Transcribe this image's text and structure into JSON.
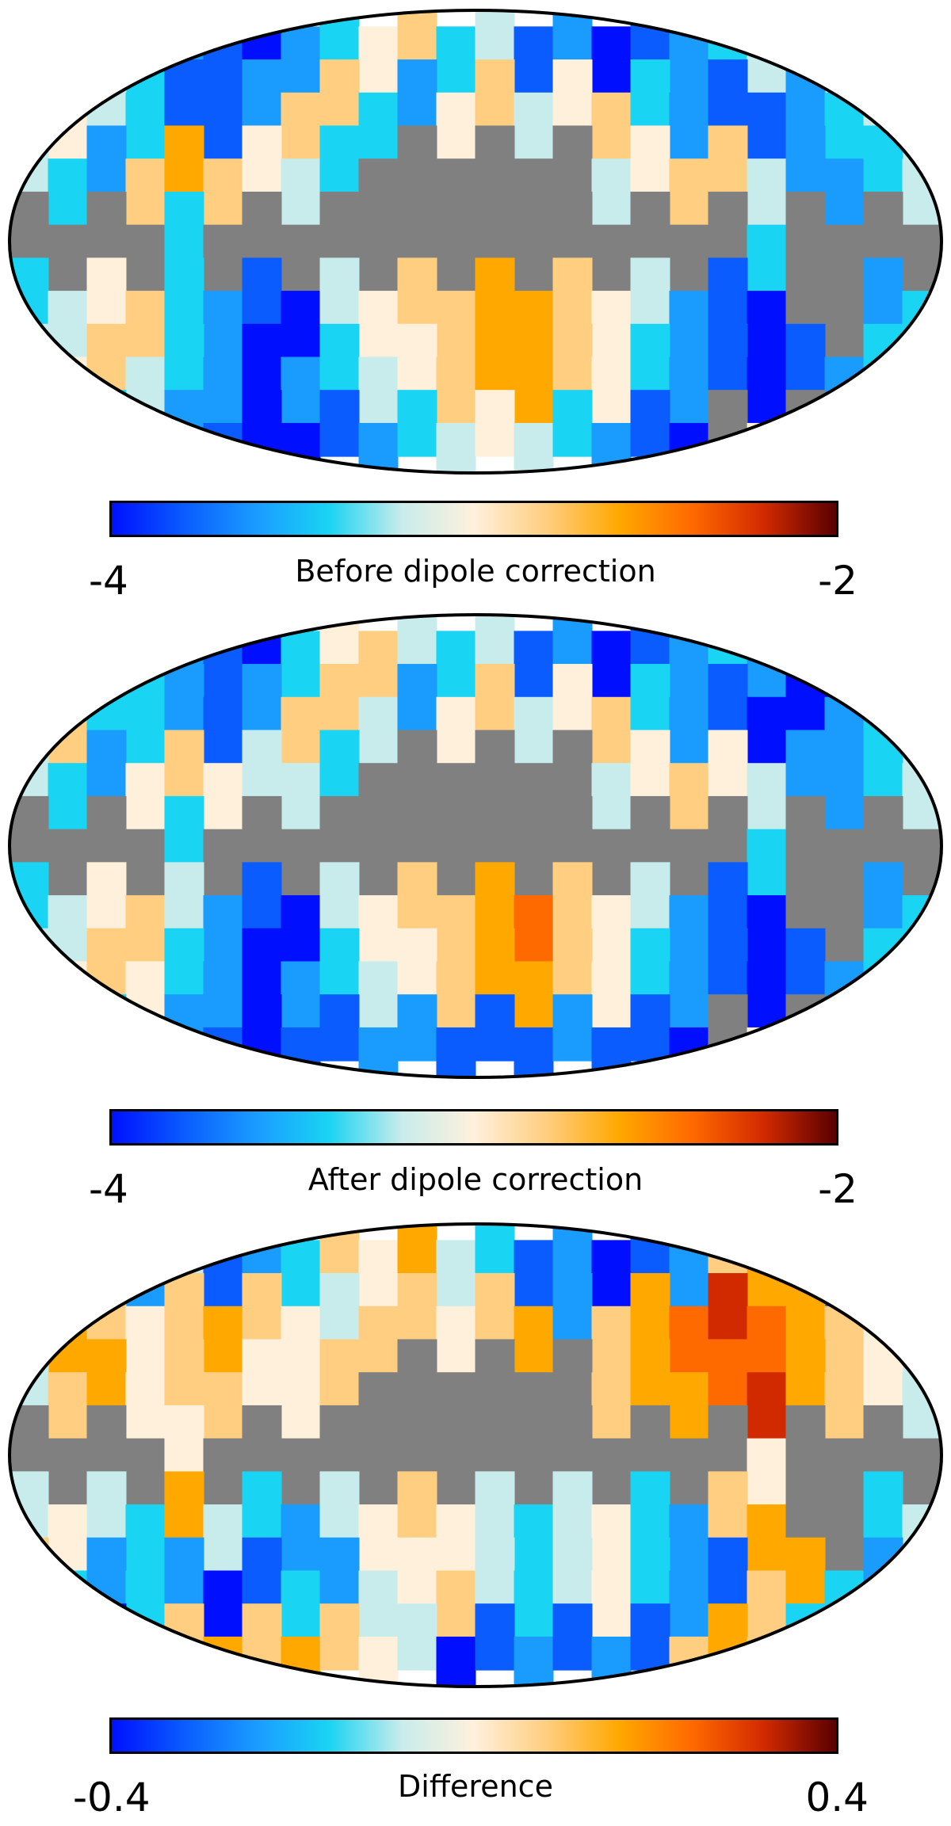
{
  "colormap": [
    "#0010ff",
    "#0a5cff",
    "#1a9cff",
    "#19d4f2",
    "#c8ecec",
    "#fff0dc",
    "#ffce80",
    "#ffa800",
    "#ff6a00",
    "#d22a00",
    "#5a0000"
  ],
  "mask_color": "#808080",
  "panels": [
    {
      "caption": "Before dipole correction",
      "range_min_label": "-4",
      "range_max_label": "-2",
      "pattern": [
        [
          4,
          6,
          4,
          3,
          2,
          1,
          0,
          2,
          3,
          5,
          6,
          3,
          4,
          1,
          2,
          0,
          1,
          2,
          3,
          4,
          6,
          5,
          4,
          3
        ],
        [
          5,
          5,
          4,
          3,
          1,
          1,
          2,
          6,
          6,
          3,
          2,
          5,
          6,
          4,
          5,
          6,
          3,
          2,
          1,
          1,
          2,
          3,
          4,
          4
        ],
        [
          4,
          3,
          2,
          6,
          7,
          6,
          5,
          4,
          3,
          -1,
          -1,
          -1,
          -1,
          -1,
          -1,
          4,
          5,
          6,
          6,
          4,
          2,
          2,
          3,
          4
        ],
        [
          -1,
          -1,
          -1,
          -1,
          3,
          -1,
          -1,
          -1,
          -1,
          -1,
          -1,
          -1,
          -1,
          -1,
          -1,
          -1,
          -1,
          -1,
          -1,
          3,
          -1,
          -1,
          -1,
          -1
        ],
        [
          3,
          4,
          5,
          6,
          3,
          2,
          1,
          0,
          4,
          5,
          6,
          6,
          7,
          7,
          6,
          5,
          4,
          2,
          1,
          0,
          -1,
          -1,
          2,
          3
        ],
        [
          4,
          5,
          6,
          4,
          3,
          2,
          0,
          2,
          3,
          4,
          5,
          6,
          7,
          7,
          6,
          5,
          3,
          2,
          1,
          0,
          1,
          2,
          3,
          3
        ],
        [
          2,
          2,
          3,
          4,
          2,
          1,
          0,
          0,
          1,
          2,
          3,
          4,
          5,
          4,
          3,
          2,
          1,
          0,
          -1,
          5,
          -1,
          1,
          1,
          2
        ]
      ]
    },
    {
      "caption": "After dipole correction",
      "range_min_label": "-4",
      "range_max_label": "-2",
      "pattern": [
        [
          4,
          5,
          4,
          3,
          2,
          1,
          0,
          3,
          5,
          6,
          4,
          3,
          4,
          1,
          2,
          0,
          1,
          2,
          3,
          2,
          1,
          0,
          3,
          4
        ],
        [
          5,
          6,
          3,
          3,
          2,
          1,
          2,
          6,
          6,
          4,
          2,
          5,
          6,
          4,
          5,
          6,
          3,
          2,
          1,
          0,
          0,
          2,
          3,
          4
        ],
        [
          4,
          3,
          2,
          5,
          6,
          5,
          4,
          4,
          3,
          -1,
          -1,
          -1,
          -1,
          -1,
          -1,
          4,
          5,
          6,
          5,
          4,
          2,
          2,
          3,
          4
        ],
        [
          -1,
          -1,
          -1,
          -1,
          3,
          -1,
          -1,
          -1,
          -1,
          -1,
          -1,
          -1,
          -1,
          -1,
          -1,
          -1,
          -1,
          -1,
          -1,
          3,
          -1,
          -1,
          -1,
          -1
        ],
        [
          3,
          4,
          5,
          6,
          4,
          2,
          1,
          0,
          4,
          5,
          6,
          6,
          7,
          8,
          6,
          5,
          4,
          2,
          1,
          0,
          -1,
          -1,
          2,
          3
        ],
        [
          4,
          5,
          6,
          5,
          3,
          2,
          0,
          2,
          3,
          4,
          5,
          6,
          7,
          7,
          6,
          5,
          3,
          2,
          1,
          0,
          1,
          2,
          3,
          3
        ],
        [
          2,
          2,
          3,
          4,
          2,
          1,
          0,
          1,
          1,
          2,
          2,
          1,
          1,
          1,
          2,
          1,
          1,
          0,
          -1,
          5,
          -1,
          1,
          1,
          2
        ]
      ]
    },
    {
      "caption": "Difference",
      "range_min_label": "-0.4",
      "range_max_label": "0.4",
      "pattern": [
        [
          6,
          5,
          3,
          2,
          4,
          1,
          2,
          3,
          6,
          5,
          7,
          4,
          3,
          1,
          2,
          0,
          1,
          2,
          6,
          7,
          8,
          1,
          0,
          4
        ],
        [
          6,
          7,
          6,
          5,
          6,
          7,
          6,
          5,
          4,
          6,
          6,
          5,
          6,
          7,
          2,
          6,
          7,
          8,
          9,
          8,
          7,
          6,
          5,
          4
        ],
        [
          4,
          6,
          7,
          5,
          6,
          6,
          5,
          5,
          6,
          -1,
          -1,
          -1,
          -1,
          -1,
          -1,
          6,
          7,
          7,
          8,
          9,
          7,
          6,
          5,
          4
        ],
        [
          -1,
          -1,
          -1,
          -1,
          5,
          -1,
          -1,
          -1,
          -1,
          -1,
          -1,
          -1,
          -1,
          -1,
          -1,
          -1,
          -1,
          -1,
          -1,
          5,
          -1,
          -1,
          -1,
          -1
        ],
        [
          4,
          5,
          4,
          3,
          7,
          4,
          3,
          2,
          4,
          5,
          6,
          5,
          4,
          3,
          4,
          5,
          3,
          2,
          6,
          7,
          -1,
          -1,
          3,
          4
        ],
        [
          6,
          3,
          2,
          3,
          2,
          0,
          1,
          3,
          2,
          4,
          5,
          6,
          4,
          3,
          4,
          5,
          3,
          2,
          1,
          6,
          7,
          3,
          2,
          3
        ],
        [
          2,
          1,
          0,
          1,
          6,
          7,
          6,
          7,
          6,
          5,
          4,
          0,
          1,
          2,
          1,
          2,
          1,
          6,
          7,
          6,
          3,
          2,
          1,
          2
        ]
      ]
    }
  ]
}
